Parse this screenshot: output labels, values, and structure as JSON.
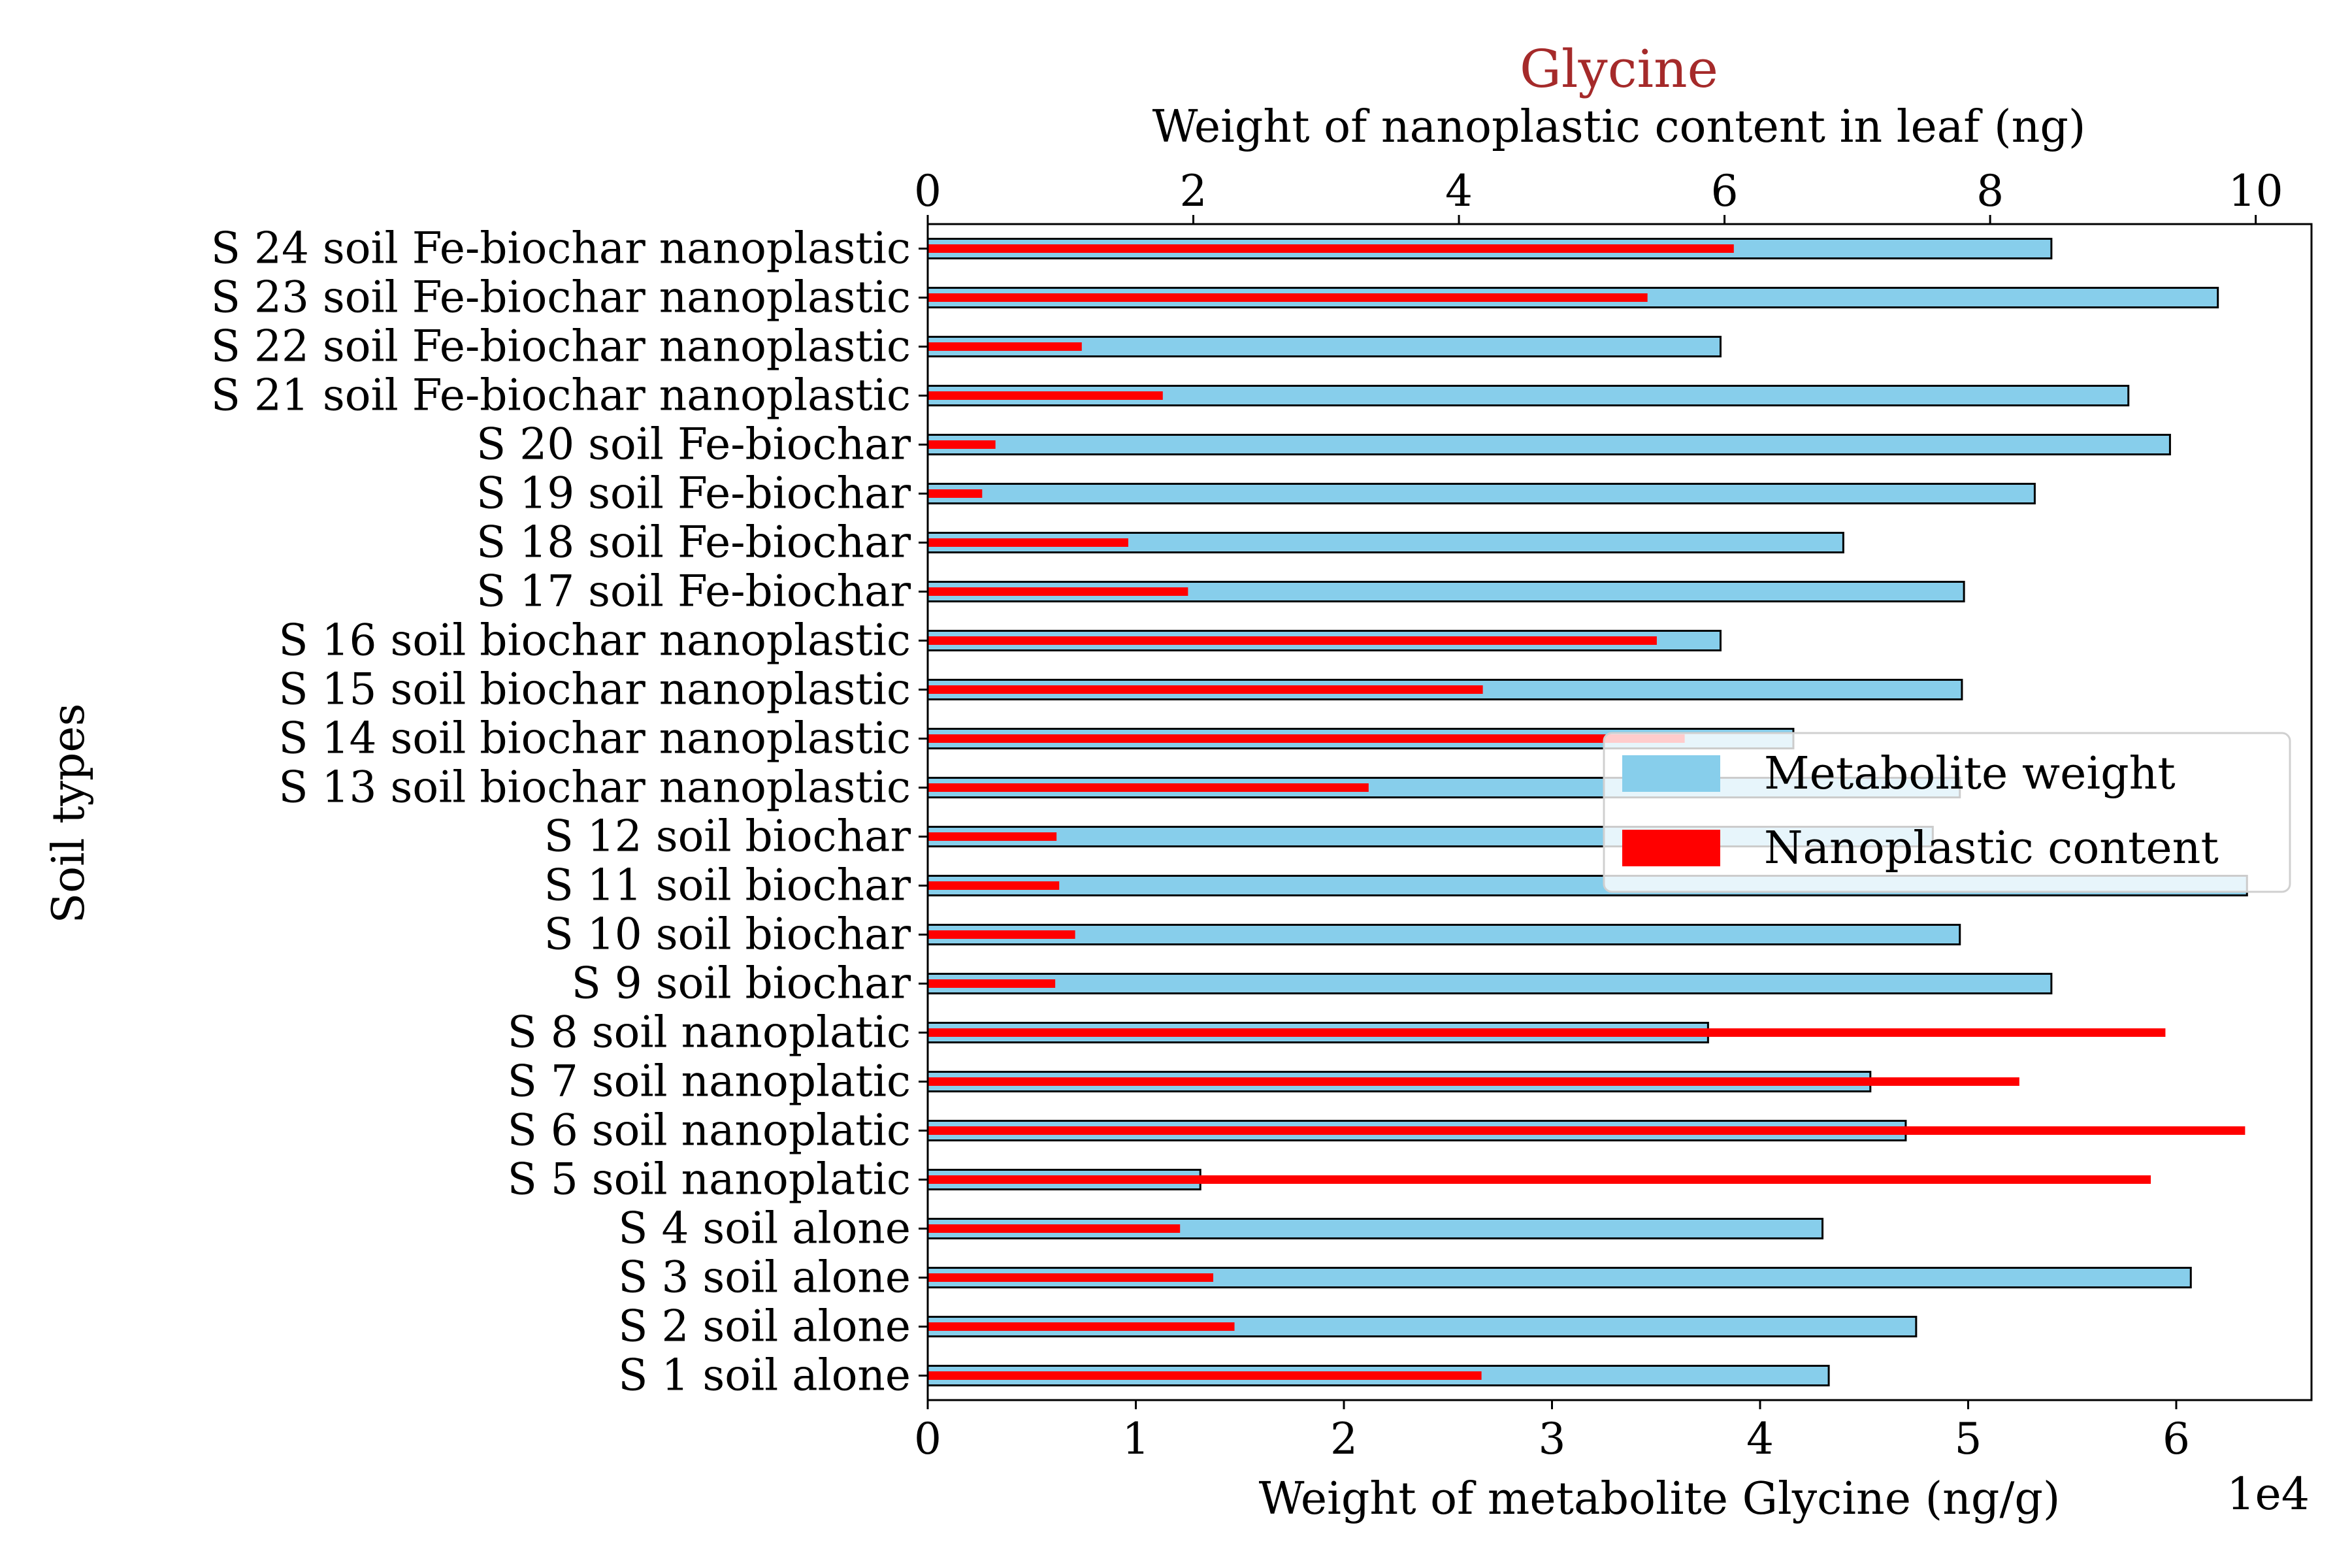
{
  "chart_data": {
    "type": "bar",
    "title": "Glycine",
    "title_color": "#a52a2a",
    "ylabel": "Soil types",
    "xlabel_bottom": "Weight of metabolite Glycine (ng/g)",
    "xlabel_top": "Weight of nanoplastic content in leaf (ng)",
    "bottom_axis_offset_label": "1e4",
    "xlim_bottom": [
      0,
      66500
    ],
    "xlim_top": [
      0,
      10.42
    ],
    "bottom_ticks": [
      {
        "value": 0,
        "label": "0"
      },
      {
        "value": 10000,
        "label": "1"
      },
      {
        "value": 20000,
        "label": "2"
      },
      {
        "value": 30000,
        "label": "3"
      },
      {
        "value": 40000,
        "label": "4"
      },
      {
        "value": 50000,
        "label": "5"
      },
      {
        "value": 60000,
        "label": "6"
      }
    ],
    "top_ticks": [
      {
        "value": 0,
        "label": "0"
      },
      {
        "value": 2,
        "label": "2"
      },
      {
        "value": 4,
        "label": "4"
      },
      {
        "value": 6,
        "label": "6"
      },
      {
        "value": 8,
        "label": "8"
      },
      {
        "value": 10,
        "label": "10"
      }
    ],
    "categories": [
      "S 1 soil alone",
      "S 2 soil alone",
      "S 3 soil alone",
      "S 4 soil alone",
      "S 5 soil nanoplatic",
      "S 6 soil nanoplatic",
      "S 7 soil nanoplatic",
      "S 8 soil nanoplatic",
      "S 9 soil biochar",
      "S 10 soil biochar",
      "S 11 soil biochar",
      "S 12 soil biochar",
      "S 13 soil biochar nanoplastic",
      "S 14 soil biochar nanoplastic",
      "S 15 soil biochar nanoplastic",
      "S 16 soil biochar nanoplastic",
      "S 17 soil Fe-biochar",
      "S 18 soil Fe-biochar",
      "S 19 soil Fe-biochar",
      "S 20 soil Fe-biochar",
      "S 21 soil Fe-biochar nanoplastic",
      "S 22 soil Fe-biochar nanoplastic",
      "S 23 soil Fe-biochar nanoplastic",
      "S 24 soil Fe-biochar nanoplastic"
    ],
    "series": [
      {
        "name": "Metabolite weight",
        "axis": "bottom",
        "color": "#87ceeb",
        "edge_color": "#000000",
        "values": [
          43300,
          47500,
          60700,
          43000,
          13100,
          47000,
          45300,
          37500,
          54000,
          49600,
          63400,
          48300,
          49600,
          41600,
          49700,
          38100,
          49800,
          44000,
          53200,
          59700,
          57700,
          38100,
          62000,
          54000
        ]
      },
      {
        "name": "Nanoplastic content",
        "axis": "top",
        "color": "#ff0000",
        "values": [
          4.17,
          2.31,
          2.15,
          1.9,
          9.21,
          9.92,
          8.22,
          9.32,
          0.96,
          1.11,
          0.99,
          0.97,
          3.32,
          5.7,
          4.18,
          5.49,
          1.96,
          1.51,
          0.41,
          0.51,
          1.77,
          1.16,
          5.42,
          6.07
        ]
      }
    ],
    "legend_position": "center-right",
    "grid": false
  }
}
